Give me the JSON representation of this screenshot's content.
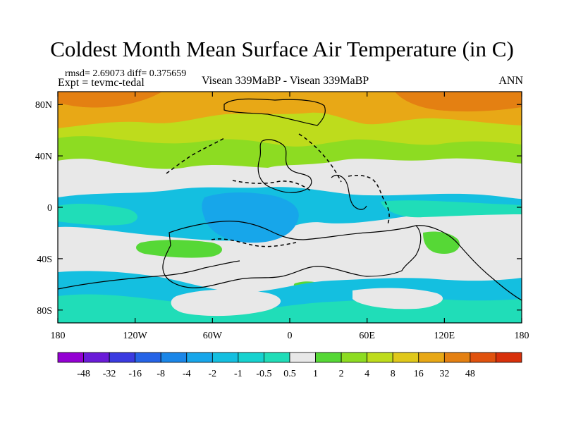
{
  "title": "Coldest Month Mean Surface Air Temperature (in C)",
  "stats": {
    "rmsd_label": "rmsd= 2.69073 diff= 0.375659"
  },
  "experiment": "Expt = tevmc-tedal",
  "comparison": "Visean 339MaBP - Visean 339MaBP",
  "season": "ANN",
  "axes": {
    "lat_ticks": [
      "80N",
      "40N",
      "0",
      "40S",
      "80S"
    ],
    "lon_ticks": [
      "180",
      "120W",
      "60W",
      "0",
      "60E",
      "120E",
      "180"
    ]
  },
  "colorbar": {
    "colors": [
      "#9400d3",
      "#6a1bd8",
      "#3a3ae0",
      "#2563e6",
      "#1a86e8",
      "#17a6ea",
      "#14bfe0",
      "#16d2cf",
      "#20ddb8",
      "#e8e8e8",
      "#56d836",
      "#8ddc22",
      "#bedc1c",
      "#e0c81a",
      "#e8a816",
      "#e48012",
      "#e0520e",
      "#d8300a"
    ],
    "labels": [
      "-48",
      "-32",
      "-16",
      "-8",
      "-4",
      "-2",
      "-1",
      "-0.5",
      "0.5",
      "1",
      "2",
      "4",
      "8",
      "16",
      "32",
      "48"
    ]
  },
  "field_colors": {
    "orange": "#e8a816",
    "yellow": "#bedc1c",
    "lime": "#8ddc22",
    "green": "#56d836",
    "white": "#e8e8e8",
    "cyan": "#14bfe0",
    "teal": "#20ddb8",
    "blue": "#17a6ea"
  }
}
